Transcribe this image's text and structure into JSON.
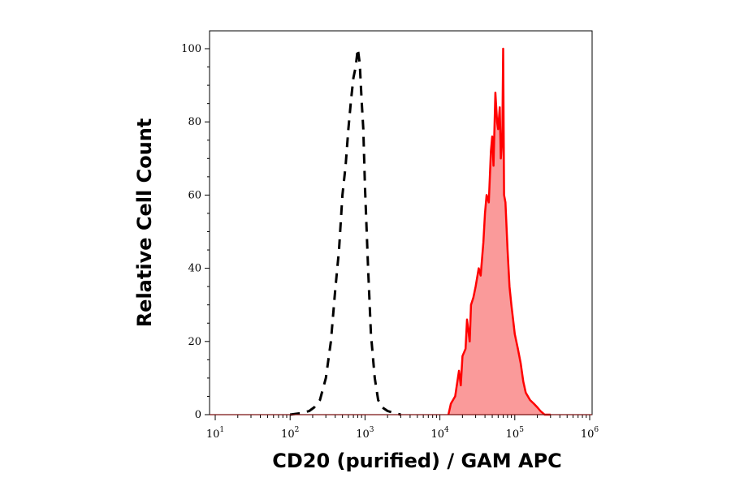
{
  "chart_data": {
    "type": "area",
    "title": "",
    "xlabel": "CD20 (purified) / GAM APC",
    "ylabel": "Relative Cell Count",
    "x_scale": "log",
    "xlim": [
      10,
      1000000
    ],
    "ylim": [
      0,
      100
    ],
    "x_ticks": [
      {
        "base": "10",
        "exp": "1",
        "value": 10
      },
      {
        "base": "10",
        "exp": "2",
        "value": 100
      },
      {
        "base": "10",
        "exp": "3",
        "value": 1000
      },
      {
        "base": "10",
        "exp": "4",
        "value": 10000
      },
      {
        "base": "10",
        "exp": "5",
        "value": 100000
      },
      {
        "base": "10",
        "exp": "6",
        "value": 1000000
      }
    ],
    "y_ticks": [
      "0",
      "20",
      "40",
      "60",
      "80",
      "100"
    ],
    "y_tick_values": [
      0,
      20,
      40,
      60,
      80,
      100
    ],
    "colors": {
      "control": "#000000",
      "stained_line": "#ff0000",
      "stained_fill": "#fa9a9a"
    },
    "series": [
      {
        "style": "dashed",
        "color": "#000000",
        "x": [
          100,
          150,
          180,
          210,
          250,
          300,
          350,
          400,
          450,
          500,
          550,
          600,
          650,
          700,
          750,
          800,
          850,
          900,
          950,
          1000,
          1100,
          1200,
          1350,
          1500,
          1700,
          2000,
          2400,
          3000
        ],
        "y": [
          0,
          0.5,
          1,
          2,
          4,
          10,
          20,
          34,
          45,
          60,
          68,
          78,
          86,
          92,
          95,
          100,
          96,
          86,
          78,
          62,
          40,
          22,
          10,
          4,
          2,
          1,
          0.5,
          0
        ]
      },
      {
        "style": "solid-filled",
        "color": "#ff0000",
        "x": [
          13000,
          14000,
          16000,
          18000,
          19000,
          20000,
          22000,
          23000,
          25000,
          26000,
          28000,
          30000,
          33000,
          35000,
          38000,
          40000,
          42000,
          45000,
          48000,
          50000,
          52000,
          55000,
          58000,
          60000,
          63000,
          65000,
          68000,
          70000,
          72000,
          75000,
          80000,
          85000,
          90000,
          95000,
          100000,
          110000,
          120000,
          130000,
          140000,
          160000,
          180000,
          200000,
          220000,
          250000,
          300000
        ],
        "y": [
          0,
          3,
          5,
          12,
          8,
          16,
          18,
          26,
          20,
          30,
          32,
          35,
          40,
          38,
          47,
          55,
          60,
          58,
          72,
          76,
          68,
          88,
          80,
          78,
          84,
          70,
          75,
          100,
          60,
          58,
          45,
          35,
          30,
          26,
          22,
          18,
          14,
          9,
          6,
          4,
          3,
          2,
          1,
          0,
          0
        ]
      }
    ]
  }
}
